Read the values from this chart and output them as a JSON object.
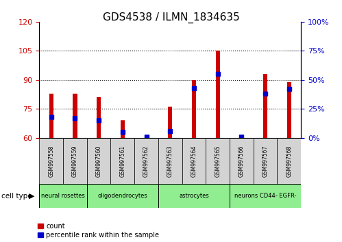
{
  "title": "GDS4538 / ILMN_1834635",
  "samples": [
    "GSM997558",
    "GSM997559",
    "GSM997560",
    "GSM997561",
    "GSM997562",
    "GSM997563",
    "GSM997564",
    "GSM997565",
    "GSM997566",
    "GSM997567",
    "GSM997568"
  ],
  "count_values": [
    83,
    83,
    81,
    69,
    60,
    76,
    90,
    105,
    60,
    93,
    89
  ],
  "percentile_values": [
    18,
    17,
    15,
    5,
    1,
    6,
    43,
    55,
    1,
    38,
    42
  ],
  "ylim_left": [
    60,
    120
  ],
  "ylim_right": [
    0,
    100
  ],
  "yticks_left": [
    60,
    75,
    90,
    105,
    120
  ],
  "yticks_right": [
    0,
    25,
    50,
    75,
    100
  ],
  "group_spans": [
    {
      "label": "neural rosettes",
      "start": 0,
      "end": 1
    },
    {
      "label": "oligodendrocytes",
      "start": 2,
      "end": 4
    },
    {
      "label": "astrocytes",
      "start": 5,
      "end": 7
    },
    {
      "label": "neurons CD44- EGFR-",
      "start": 8,
      "end": 10
    }
  ],
  "green_color": "#90EE90",
  "gray_color": "#D3D3D3",
  "bar_color": "#CC0000",
  "dot_color": "#0000CC",
  "bar_width": 0.18,
  "background_color": "#ffffff",
  "tick_color_left": "#CC0000",
  "tick_color_right": "#0000CC",
  "legend_items": [
    "count",
    "percentile rank within the sample"
  ]
}
